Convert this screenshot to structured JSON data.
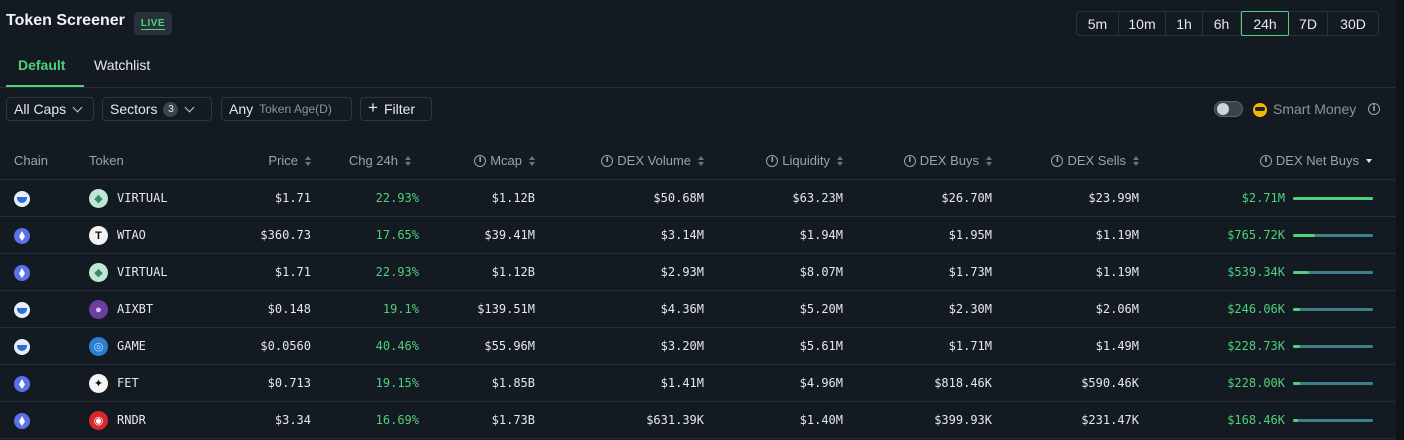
{
  "header": {
    "title": "Token Screener",
    "live_label": "LIVE",
    "timeframes": [
      "5m",
      "10m",
      "1h",
      "6h",
      "24h",
      "7D",
      "30D"
    ],
    "active_timeframe": "24h"
  },
  "tabs": [
    {
      "label": "Default",
      "active": true
    },
    {
      "label": "Watchlist",
      "active": false
    }
  ],
  "filters": {
    "caps_label": "All Caps",
    "sectors_label": "Sectors",
    "sectors_count": "3",
    "token_age_value": "Any",
    "token_age_label": "Token Age(D)",
    "filter_label": "Filter",
    "smart_money_label": "Smart Money",
    "smart_money_enabled": false
  },
  "table": {
    "columns": {
      "chain": "Chain",
      "token": "Token",
      "price": "Price",
      "chg": "Chg 24h",
      "mcap": "Mcap",
      "dex_volume": "DEX Volume",
      "liquidity": "Liquidity",
      "dex_buys": "DEX Buys",
      "dex_sells": "DEX Sells",
      "dex_net_buys": "DEX Net Buys"
    },
    "rows": [
      {
        "chain": "base",
        "token": "VIRTUAL",
        "token_icon": "virtual",
        "price": "$1.71",
        "chg": "22.93%",
        "mcap": "$1.12B",
        "dex_volume": "$50.68M",
        "liquidity": "$63.23M",
        "dex_buys": "$26.70M",
        "dex_sells": "$23.99M",
        "net_buys": "$2.71M",
        "net_ratio": 1.0
      },
      {
        "chain": "ethereum",
        "token": "WTAO",
        "token_icon": "wtao",
        "price": "$360.73",
        "chg": "17.65%",
        "mcap": "$39.41M",
        "dex_volume": "$3.14M",
        "liquidity": "$1.94M",
        "dex_buys": "$1.95M",
        "dex_sells": "$1.19M",
        "net_buys": "$765.72K",
        "net_ratio": 0.28
      },
      {
        "chain": "ethereum",
        "token": "VIRTUAL",
        "token_icon": "virtual",
        "price": "$1.71",
        "chg": "22.93%",
        "mcap": "$1.12B",
        "dex_volume": "$2.93M",
        "liquidity": "$8.07M",
        "dex_buys": "$1.73M",
        "dex_sells": "$1.19M",
        "net_buys": "$539.34K",
        "net_ratio": 0.2
      },
      {
        "chain": "base",
        "token": "AIXBT",
        "token_icon": "aixbt",
        "price": "$0.148",
        "chg": "19.1%",
        "mcap": "$139.51M",
        "dex_volume": "$4.36M",
        "liquidity": "$5.20M",
        "dex_buys": "$2.30M",
        "dex_sells": "$2.06M",
        "net_buys": "$246.06K",
        "net_ratio": 0.09
      },
      {
        "chain": "base",
        "token": "GAME",
        "token_icon": "game",
        "price": "$0.0560",
        "chg": "40.46%",
        "mcap": "$55.96M",
        "dex_volume": "$3.20M",
        "liquidity": "$5.61M",
        "dex_buys": "$1.71M",
        "dex_sells": "$1.49M",
        "net_buys": "$228.73K",
        "net_ratio": 0.084
      },
      {
        "chain": "ethereum",
        "token": "FET",
        "token_icon": "fet",
        "price": "$0.713",
        "chg": "19.15%",
        "mcap": "$1.85B",
        "dex_volume": "$1.41M",
        "liquidity": "$4.96M",
        "dex_buys": "$818.46K",
        "dex_sells": "$590.46K",
        "net_buys": "$228.00K",
        "net_ratio": 0.084
      },
      {
        "chain": "ethereum",
        "token": "RNDR",
        "token_icon": "rndr",
        "price": "$3.34",
        "chg": "16.69%",
        "mcap": "$1.73B",
        "dex_volume": "$631.39K",
        "liquidity": "$1.40M",
        "dex_buys": "$399.93K",
        "dex_sells": "$231.47K",
        "net_buys": "$168.46K",
        "net_ratio": 0.062
      }
    ]
  },
  "colors": {
    "accent": "#4ed17d",
    "background": "#141a21",
    "bar_track": "#3f7f8a"
  }
}
